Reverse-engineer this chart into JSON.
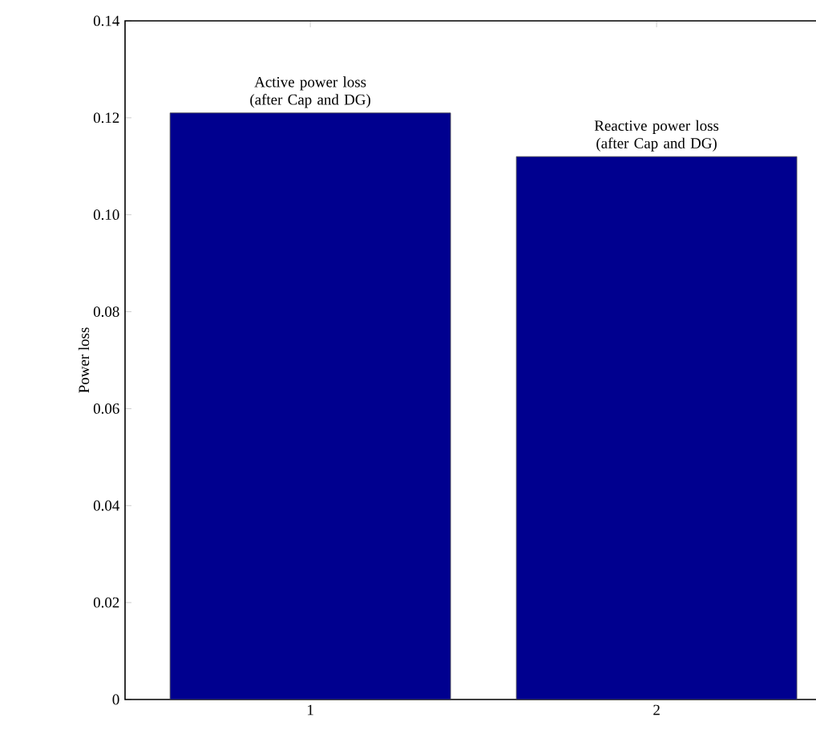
{
  "chart_data": {
    "type": "bar",
    "ylabel": "Power loss",
    "categories": [
      "1",
      "2"
    ],
    "values": [
      0.121,
      0.112
    ],
    "color": "#00008f",
    "ylim": [
      0,
      0.14
    ],
    "yticks": [
      0,
      {
        "value": 0.02,
        "label": "0.02"
      },
      {
        "value": 0.04,
        "label": "0.04"
      },
      {
        "value": 0.06,
        "label": "0.06"
      },
      {
        "value": 0.08,
        "label": "0.08"
      },
      {
        "value": 0.1,
        "label": "0.10"
      },
      {
        "value": 0.12,
        "label": "0.12"
      },
      {
        "value": 0.14,
        "label": "0.14"
      }
    ],
    "annotations": [
      {
        "text": "Active power loss (after Cap and DG)",
        "x": "1",
        "y": 0.121
      },
      {
        "text": "Reactive power loss (after Cap and DG)",
        "x": "2",
        "y": 0.112
      }
    ]
  }
}
